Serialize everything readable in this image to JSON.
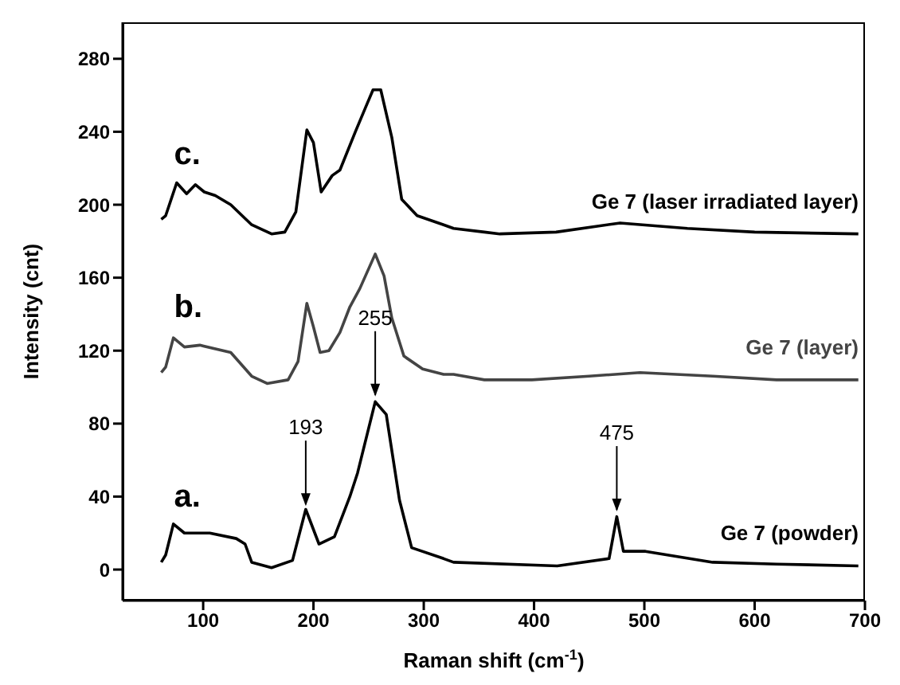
{
  "chart_data": {
    "type": "line",
    "xlabel": "Raman shift (cm$^{-1}$)",
    "ylabel": "Intensity (cnt)",
    "xlim": [
      27,
      700
    ],
    "xticks": [
      100,
      200,
      300,
      400,
      500,
      600,
      700
    ],
    "ylim": [
      -17,
      300
    ],
    "yticks": [
      0,
      40,
      80,
      120,
      160,
      200,
      240,
      280
    ],
    "marker": "none",
    "line_style": "solid",
    "series": [
      {
        "name": "Ge 7 (laser irradiated layer)",
        "color": "#000000",
        "x": [
          62,
          66,
          76,
          85,
          93,
          101,
          111,
          125,
          144,
          162,
          174,
          184,
          194,
          200,
          207,
          217,
          224,
          238,
          247,
          254,
          261,
          271,
          280,
          294,
          318,
          327,
          355,
          369,
          420,
          478,
          539,
          600,
          694
        ],
        "values": [
          192,
          194,
          212,
          206,
          211,
          207,
          205,
          200,
          189,
          184,
          185,
          196,
          241,
          234,
          207,
          216,
          219,
          240,
          253,
          263,
          263,
          237,
          203,
          194,
          189,
          187,
          185,
          184,
          185,
          190,
          187,
          185,
          184
        ]
      },
      {
        "name": "Ge 7 (layer)",
        "color": "#444444",
        "x": [
          62,
          66,
          73,
          83,
          97,
          125,
          144,
          158,
          177,
          186,
          194,
          200,
          206,
          214,
          224,
          233,
          242,
          256,
          264,
          271,
          282,
          299,
          318,
          327,
          355,
          398,
          450,
          496,
          562,
          620,
          694
        ],
        "values": [
          108,
          111,
          127,
          122,
          123,
          119,
          106,
          102,
          104,
          114,
          146,
          133,
          119,
          120,
          130,
          144,
          154,
          173,
          161,
          138,
          117,
          110,
          107,
          107,
          104,
          104,
          106,
          108,
          106,
          104,
          104
        ]
      },
      {
        "name": "Ge 7 (powder)",
        "color": "#000000",
        "x": [
          62,
          66,
          73,
          83,
          106,
          130,
          138,
          144,
          162,
          181,
          193,
          205,
          219,
          233,
          240,
          256,
          266,
          278,
          289,
          318,
          327,
          421,
          468,
          475,
          481,
          501,
          562,
          620,
          694
        ],
        "values": [
          4,
          8,
          25,
          20,
          20,
          17,
          14,
          4,
          1,
          5,
          33,
          14,
          18,
          40,
          53,
          92,
          85,
          38,
          12,
          6,
          4,
          2,
          6,
          29,
          10,
          10,
          4,
          3,
          2
        ]
      }
    ],
    "annotations": [
      "c.",
      "b.",
      "a.",
      {
        "text": "193",
        "x": 193,
        "y": 34
      },
      {
        "text": "255",
        "x": 256,
        "y": 94
      },
      {
        "text": "475",
        "x": 475,
        "y": 31
      }
    ]
  }
}
